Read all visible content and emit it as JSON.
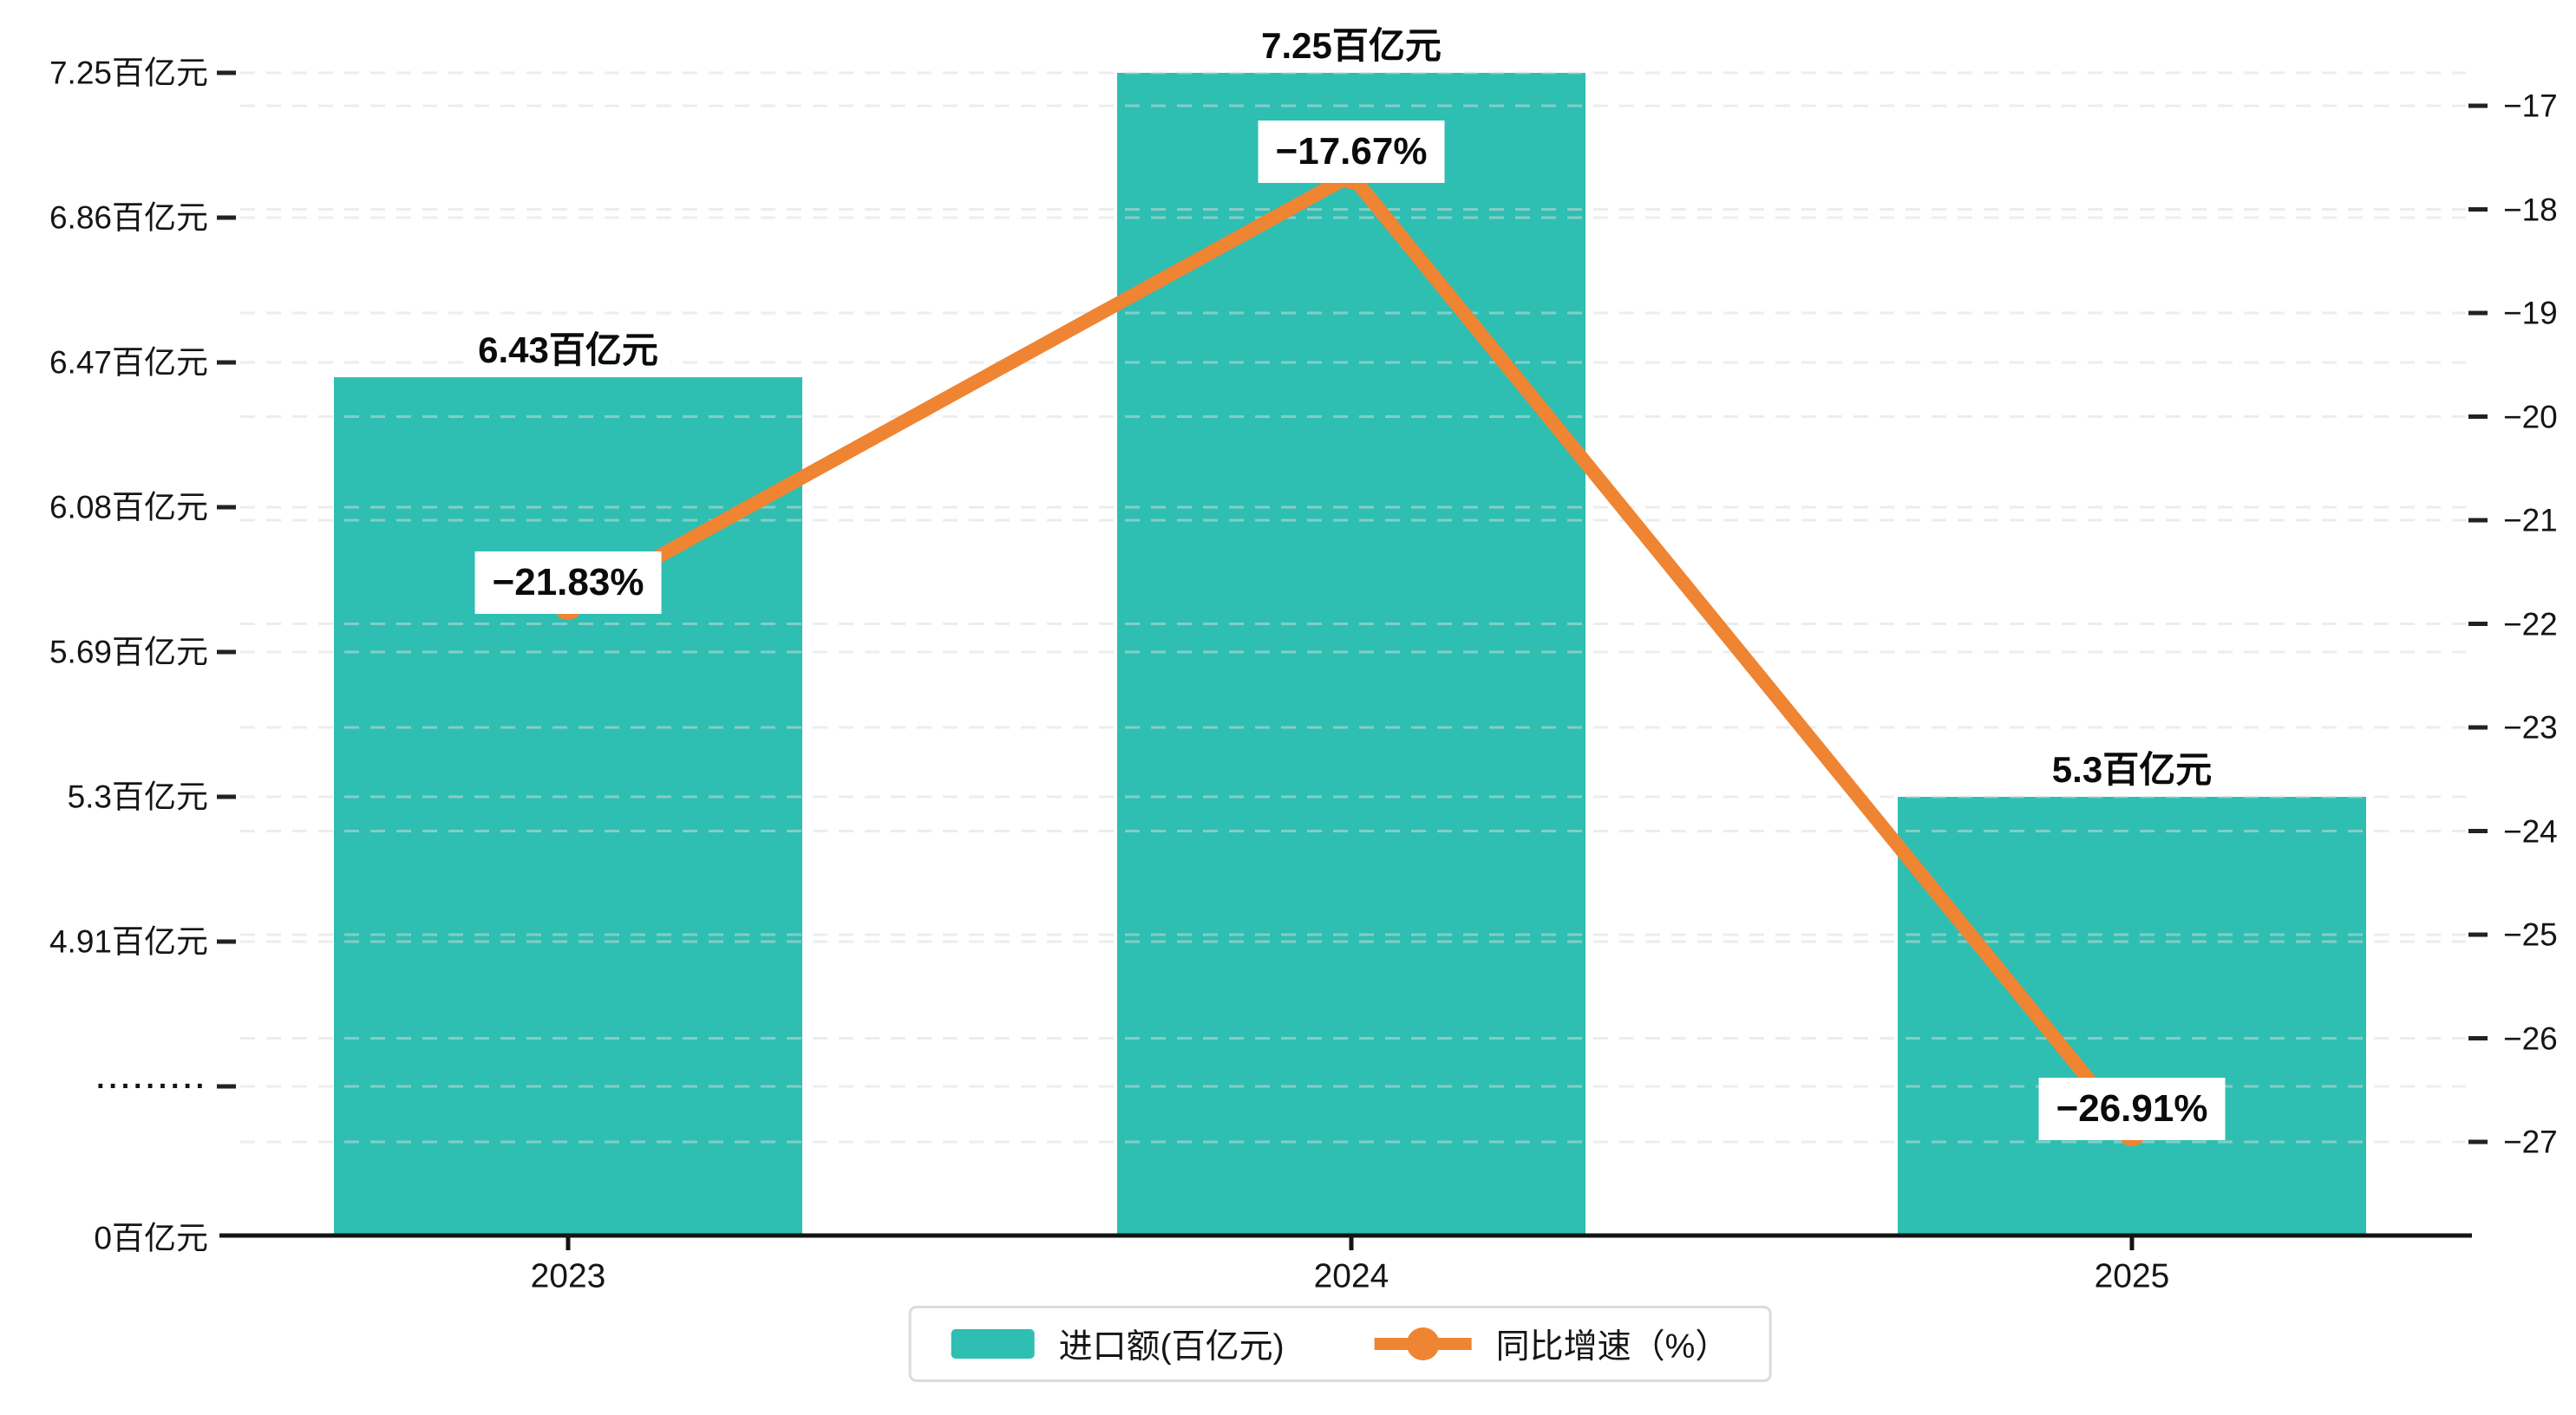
{
  "chart_data": {
    "type": "bar",
    "subtype": "bar-line-dual-axis",
    "background": "#FFFFFF",
    "categories": [
      "2023",
      "2024",
      "2025"
    ],
    "series": [
      {
        "name": "进口额(百亿元)",
        "type": "bar",
        "axis": "left",
        "color": "#2FBEB2",
        "values": [
          6.43,
          7.25,
          5.3
        ],
        "point_labels": [
          "6.43百亿元",
          "7.25百亿元",
          "5.3百亿元"
        ]
      },
      {
        "name": "同比增速（%）",
        "type": "line",
        "axis": "right",
        "color": "#EF8432",
        "values": [
          -21.83,
          -17.67,
          -26.91
        ],
        "point_labels": [
          "−21.83%",
          "−17.67%",
          "−26.91%"
        ]
      }
    ],
    "left_axis": {
      "unit": "百亿元",
      "broken_axis": true,
      "ticks": [
        {
          "label": "7.25百亿元",
          "value": 7.25
        },
        {
          "label": "6.86百亿元",
          "value": 6.86
        },
        {
          "label": "6.47百亿元",
          "value": 6.47
        },
        {
          "label": "6.08百亿元",
          "value": 6.08
        },
        {
          "label": "5.69百亿元",
          "value": 5.69
        },
        {
          "label": "5.3百亿元",
          "value": 5.3
        },
        {
          "label": "4.91百亿元",
          "value": 4.91
        },
        {
          "label": "·········",
          "value": null
        },
        {
          "label": "0百亿元",
          "value": 0
        }
      ]
    },
    "right_axis": {
      "min": -27,
      "max": -17,
      "ticks": [
        "−17",
        "−18",
        "−19",
        "−20",
        "−21",
        "−22",
        "−23",
        "−24",
        "−25",
        "−26",
        "−27"
      ]
    },
    "x_axis": {
      "tick_labels": [
        "2023",
        "2024",
        "2025"
      ]
    },
    "legend": {
      "position": "bottom-center",
      "items": [
        {
          "label": "进口额(百亿元)",
          "marker": "bar-swatch",
          "color": "#2FBEB2"
        },
        {
          "label": "同比增速（%）",
          "marker": "line-dot",
          "color": "#EF8432"
        }
      ]
    },
    "grid": {
      "style": "dashed",
      "color": "#DCDCDC",
      "on": true
    },
    "axis_line_color": "#141414"
  }
}
